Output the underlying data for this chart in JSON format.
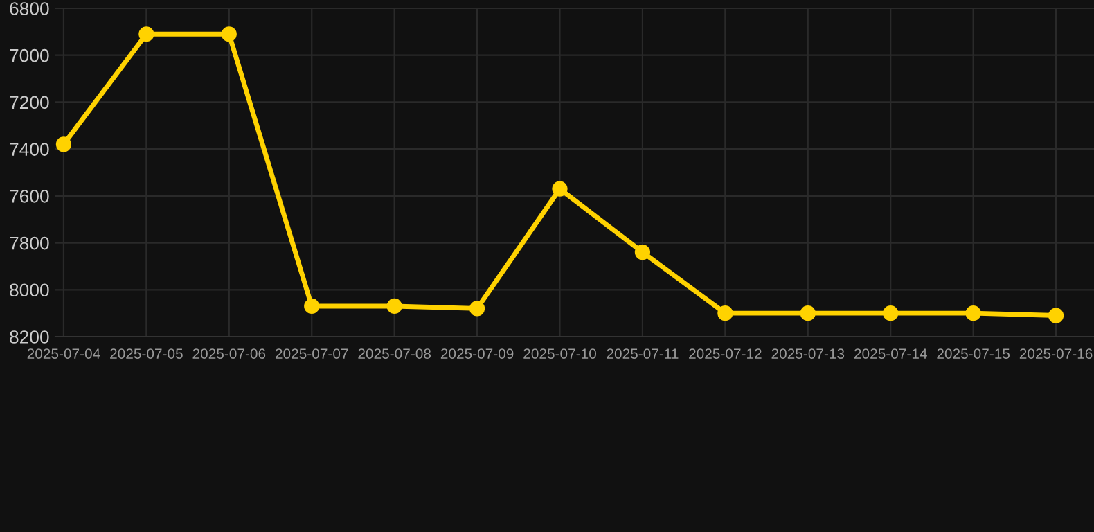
{
  "chart_data": {
    "type": "line",
    "categories": [
      "2025-07-04",
      "2025-07-05",
      "2025-07-06",
      "2025-07-07",
      "2025-07-08",
      "2025-07-09",
      "2025-07-10",
      "2025-07-11",
      "2025-07-12",
      "2025-07-13",
      "2025-07-14",
      "2025-07-15",
      "2025-07-16"
    ],
    "series": [
      {
        "color": "#ffd200",
        "values": [
          7380,
          6910,
          6910,
          8070,
          8070,
          8080,
          7570,
          7840,
          8100,
          8100,
          8100,
          8100,
          8110
        ]
      }
    ],
    "ylim": [
      8200,
      6800
    ],
    "yticks": [
      6800,
      7000,
      7200,
      7400,
      7600,
      7800,
      8000,
      8200
    ],
    "grid": true,
    "marker": "circle",
    "line_style": "solid"
  }
}
